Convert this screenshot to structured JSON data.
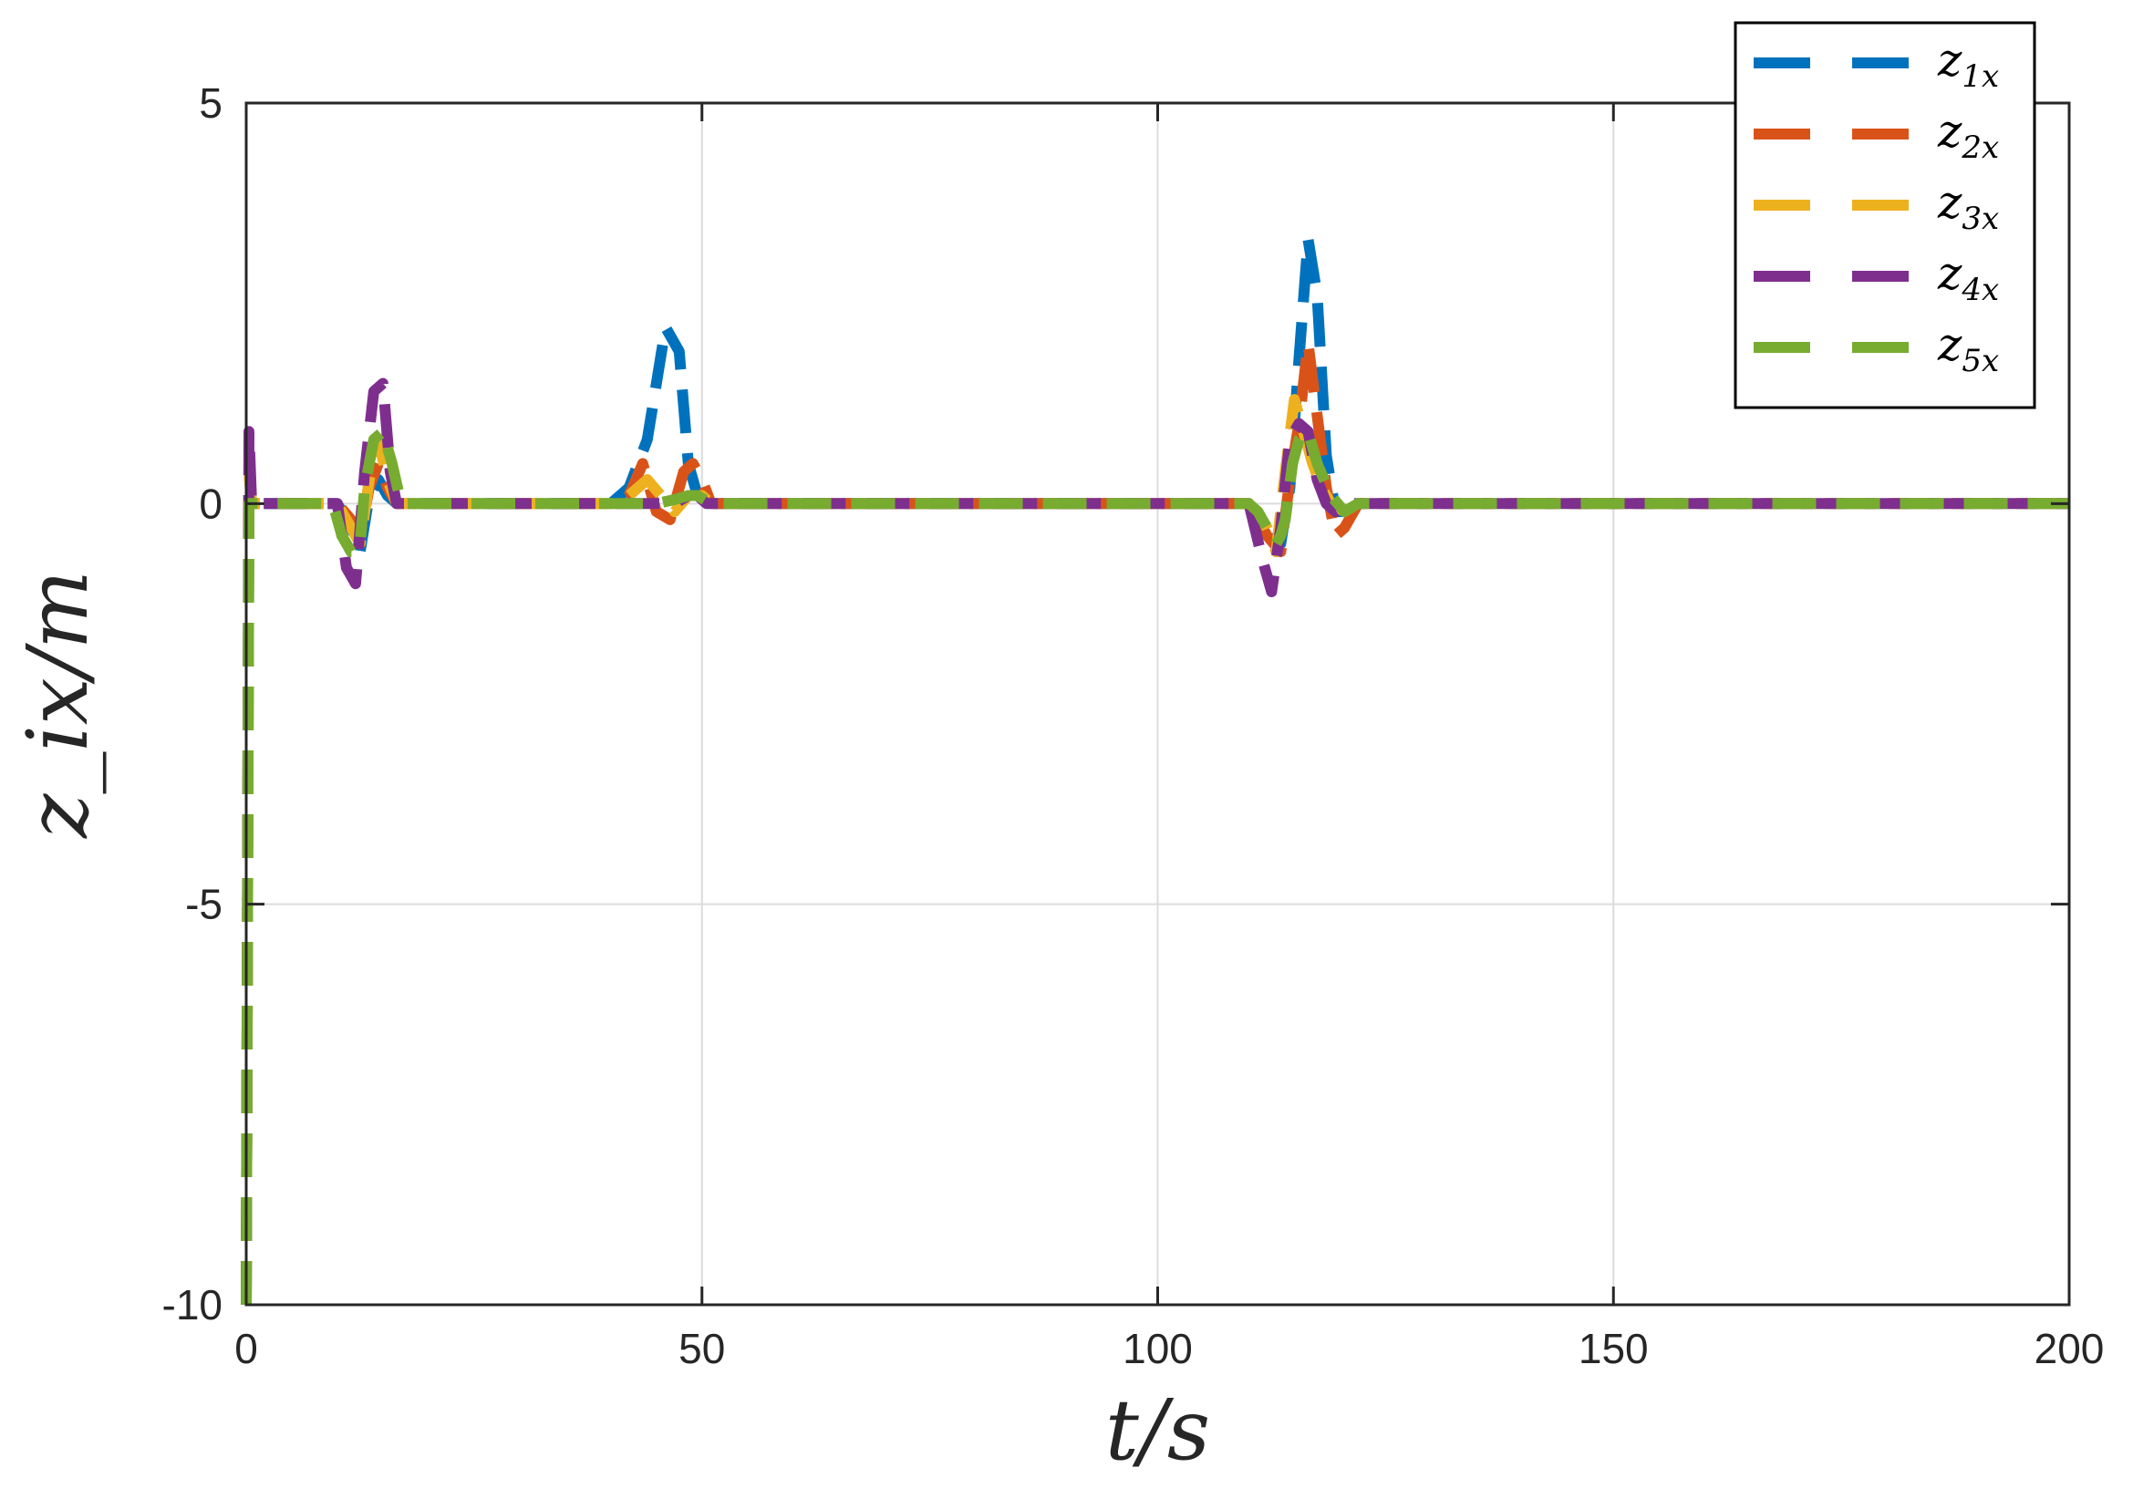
{
  "chart_data": {
    "type": "line",
    "xlabel": "t/s",
    "ylabel": "z_ix/m",
    "xlim": [
      0,
      200
    ],
    "ylim": [
      -10,
      5
    ],
    "xticks": [
      0,
      50,
      100,
      150,
      200
    ],
    "yticks": [
      -10,
      -5,
      0,
      5
    ],
    "xtick_labels": [
      "0",
      "50",
      "100",
      "150",
      "200"
    ],
    "ytick_labels": [
      "-10",
      "-5",
      "0",
      "5"
    ],
    "grid": true,
    "legend_position": "top-right",
    "line_style": "dashed",
    "series": [
      {
        "name": "z1x",
        "name_base": "z",
        "name_sub": "1x",
        "color": "#0072BD",
        "x": [
          0,
          0.3,
          0.6,
          1,
          10,
          11.5,
          12.5,
          13.5,
          14.5,
          15.5,
          16.5,
          40,
          42,
          44,
          46,
          47.5,
          48.5,
          49.5,
          50.5,
          51.5,
          110,
          112,
          113.5,
          114.5,
          115.5,
          116.5,
          117.5,
          118.5,
          119.5,
          120.5,
          122,
          200
        ],
        "y": [
          -10,
          0.5,
          0,
          0,
          0,
          -0.3,
          -0.6,
          0.1,
          0.3,
          0.1,
          0,
          0,
          0.2,
          0.8,
          2.2,
          1.9,
          0.5,
          0.1,
          0,
          0,
          0,
          -0.4,
          -0.5,
          0.2,
          1.8,
          3.3,
          2.6,
          0.6,
          -0.1,
          -0.1,
          0,
          0
        ]
      },
      {
        "name": "z2x",
        "name_base": "z",
        "name_sub": "2x",
        "color": "#D95319",
        "x": [
          0,
          0.3,
          0.6,
          1,
          10,
          11.5,
          12.5,
          13.5,
          14.5,
          15.5,
          16.5,
          40,
          42,
          43.5,
          45,
          46.5,
          48,
          49,
          50,
          51,
          110,
          112,
          113.5,
          114.5,
          115.5,
          116.5,
          117.5,
          118.5,
          119.5,
          120.5,
          122,
          200
        ],
        "y": [
          -10,
          0.4,
          0,
          0,
          0,
          -0.2,
          -0.4,
          0.2,
          0.5,
          0.2,
          0,
          0,
          0.1,
          0.5,
          -0.1,
          -0.2,
          0.4,
          0.5,
          0.3,
          0,
          0,
          -0.4,
          -0.6,
          0.3,
          1.0,
          2.0,
          1.1,
          0.2,
          -0.4,
          -0.3,
          0,
          0
        ]
      },
      {
        "name": "z3x",
        "name_base": "z",
        "name_sub": "3x",
        "color": "#EDB120",
        "x": [
          0,
          0.3,
          0.6,
          1,
          10,
          11.5,
          12.5,
          13.5,
          14.5,
          15.5,
          16.5,
          40,
          42,
          44,
          45.5,
          47,
          48.5,
          50,
          51,
          110,
          112,
          113,
          114,
          115,
          116,
          117,
          118,
          119,
          120.5,
          122,
          200
        ],
        "y": [
          -10,
          0.4,
          0,
          0,
          0,
          -0.3,
          -0.5,
          0.3,
          0.8,
          0.3,
          0,
          0,
          0.1,
          0.3,
          0.1,
          -0.1,
          0.1,
          0.1,
          0,
          0,
          -0.3,
          -0.6,
          0.4,
          1.3,
          0.9,
          0.5,
          0.2,
          0,
          -0.1,
          0,
          0
        ]
      },
      {
        "name": "z4x",
        "name_base": "z",
        "name_sub": "4x",
        "color": "#7E2F8E",
        "x": [
          0,
          0.3,
          0.6,
          1,
          10,
          11,
          12,
          13,
          14,
          15,
          15.8,
          16.5,
          40,
          43,
          45,
          47,
          48.5,
          49.5,
          50.5,
          51.5,
          110,
          111.5,
          112.5,
          113.5,
          114.5,
          115.5,
          116.5,
          117.5,
          118.5,
          119.5,
          121,
          200
        ],
        "y": [
          -10,
          0.9,
          0,
          0,
          0,
          -0.8,
          -1.0,
          0.4,
          1.4,
          1.5,
          0.4,
          0,
          0,
          0,
          0,
          0,
          0.1,
          0.1,
          0,
          0,
          0,
          -0.7,
          -1.1,
          -0.3,
          0.8,
          1.0,
          0.9,
          0.3,
          0,
          -0.1,
          0,
          0
        ]
      },
      {
        "name": "z5x",
        "name_base": "z",
        "name_sub": "5x",
        "color": "#77AC30",
        "x": [
          0,
          0.3,
          0.6,
          1,
          9.5,
          10.5,
          11.5,
          12,
          12.5,
          13,
          14,
          15,
          16,
          17,
          40,
          43,
          45,
          47,
          48.5,
          49.5,
          51,
          110,
          111,
          112,
          113,
          113.5,
          114,
          114.8,
          115.5,
          116.5,
          117.5,
          119,
          120.5,
          122,
          200
        ],
        "y": [
          -10,
          0,
          0,
          0,
          0,
          -0.4,
          -0.6,
          -0.6,
          -0.5,
          0.2,
          0.8,
          0.9,
          0.5,
          0,
          0,
          0,
          0,
          0.05,
          0.1,
          0.1,
          0,
          0,
          -0.1,
          -0.3,
          -0.5,
          -0.4,
          -0.2,
          0.5,
          0.8,
          0.9,
          0.5,
          0.1,
          -0.1,
          0,
          0
        ]
      }
    ]
  }
}
